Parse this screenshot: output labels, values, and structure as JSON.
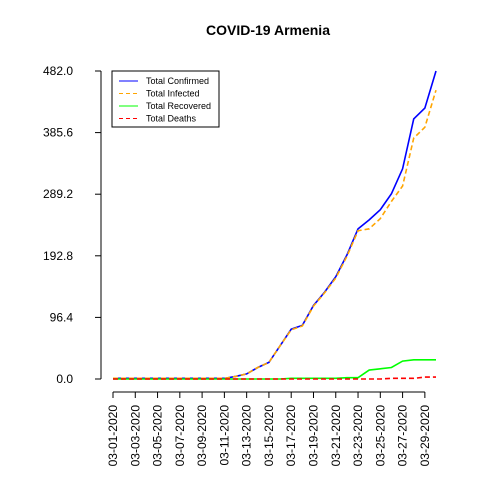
{
  "chart_data": {
    "type": "line",
    "title": "COVID-19 Armenia",
    "xlabel": "",
    "ylabel": "",
    "ylim": [
      0,
      482
    ],
    "yticks": [
      0.0,
      96.4,
      192.8,
      289.2,
      385.6,
      482.0
    ],
    "ytick_labels": [
      "0.0",
      "96.4",
      "192.8",
      "289.2",
      "385.6",
      "482.0"
    ],
    "x": [
      "03-01-2020",
      "03-02-2020",
      "03-03-2020",
      "03-04-2020",
      "03-05-2020",
      "03-06-2020",
      "03-07-2020",
      "03-08-2020",
      "03-09-2020",
      "03-10-2020",
      "03-11-2020",
      "03-12-2020",
      "03-13-2020",
      "03-14-2020",
      "03-15-2020",
      "03-16-2020",
      "03-17-2020",
      "03-18-2020",
      "03-19-2020",
      "03-20-2020",
      "03-21-2020",
      "03-22-2020",
      "03-23-2020",
      "03-24-2020",
      "03-25-2020",
      "03-26-2020",
      "03-27-2020",
      "03-28-2020",
      "03-29-2020",
      "03-30-2020"
    ],
    "xtick_labels": [
      "03-01-2020",
      "03-03-2020",
      "03-05-2020",
      "03-07-2020",
      "03-09-2020",
      "03-11-2020",
      "03-13-2020",
      "03-15-2020",
      "03-17-2020",
      "03-19-2020",
      "03-21-2020",
      "03-23-2020",
      "03-25-2020",
      "03-27-2020",
      "03-29-2020"
    ],
    "series": [
      {
        "name": "Total Confirmed",
        "color": "#0000ff",
        "dash": "solid",
        "values": [
          1,
          1,
          1,
          1,
          1,
          1,
          1,
          1,
          1,
          1,
          1,
          4,
          8,
          18,
          26,
          52,
          78,
          84,
          115,
          136,
          160,
          194,
          235,
          249,
          265,
          290,
          329,
          407,
          424,
          482
        ]
      },
      {
        "name": "Total Infected",
        "color": "#ffa500",
        "dash": "dashed",
        "values": [
          1,
          1,
          1,
          1,
          1,
          1,
          1,
          1,
          1,
          1,
          1,
          4,
          8,
          18,
          26,
          52,
          77,
          83,
          114,
          135,
          158,
          192,
          232,
          235,
          251,
          278,
          302,
          377,
          394,
          452
        ]
      },
      {
        "name": "Total Recovered",
        "color": "#00ff00",
        "dash": "solid",
        "values": [
          0,
          0,
          0,
          0,
          0,
          0,
          0,
          0,
          0,
          0,
          0,
          0,
          0,
          0,
          0,
          0,
          1,
          1,
          1,
          1,
          1,
          2,
          2,
          14,
          16,
          18,
          28,
          30,
          30,
          30
        ]
      },
      {
        "name": "Total Deaths",
        "color": "#ff0000",
        "dash": "dashed",
        "values": [
          0,
          0,
          0,
          0,
          0,
          0,
          0,
          0,
          0,
          0,
          0,
          0,
          0,
          0,
          0,
          0,
          0,
          0,
          0,
          0,
          0,
          0,
          0,
          0,
          0,
          1,
          1,
          1,
          3,
          3
        ]
      }
    ],
    "legend_position": "top-left",
    "grid": false
  }
}
